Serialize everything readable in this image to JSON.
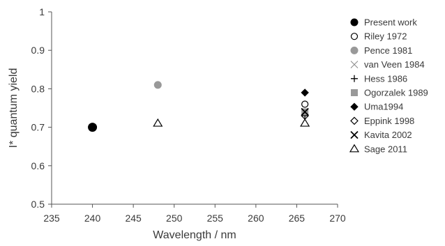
{
  "chart_data": {
    "type": "scatter",
    "title": "",
    "xlabel": "Wavelength / nm",
    "ylabel": "I* quantum yield",
    "xlim": [
      235,
      270
    ],
    "ylim": [
      0.5,
      1.0
    ],
    "xticks": [
      235,
      240,
      245,
      250,
      255,
      260,
      265,
      270
    ],
    "yticks": [
      0.5,
      0.6,
      0.7,
      0.8,
      0.9,
      1.0
    ],
    "xtick_labels": [
      "235",
      "240",
      "245",
      "250",
      "255",
      "260",
      "265",
      "270"
    ],
    "ytick_labels": [
      "0.5",
      "0.6",
      "0.7",
      "0.8",
      "0.9",
      "1"
    ],
    "grid": false,
    "legend_position": "right",
    "series": [
      {
        "name": "Present work",
        "marker": "filled-circle",
        "color": "#000000",
        "points": [
          {
            "x": 240,
            "y": 0.7
          }
        ]
      },
      {
        "name": "Riley 1972",
        "marker": "open-circle",
        "color": "#000000",
        "points": [
          {
            "x": 266,
            "y": 0.76
          }
        ]
      },
      {
        "name": "Pence 1981",
        "marker": "grey-circle",
        "color": "#999999",
        "points": [
          {
            "x": 248,
            "y": 0.81
          }
        ]
      },
      {
        "name": "van Veen 1984",
        "marker": "x-thin",
        "color": "#888888",
        "points": [
          {
            "x": 266,
            "y": 0.74
          }
        ]
      },
      {
        "name": "Hess 1986",
        "marker": "plus",
        "color": "#000000",
        "points": [
          {
            "x": 266,
            "y": 0.73
          }
        ]
      },
      {
        "name": "Ogorzalek 1989",
        "marker": "grey-square",
        "color": "#999999",
        "points": [
          {
            "x": 266,
            "y": 0.74
          }
        ]
      },
      {
        "name": "Uma1994",
        "marker": "filled-diamond",
        "color": "#000000",
        "points": [
          {
            "x": 266,
            "y": 0.79
          }
        ]
      },
      {
        "name": "Eppink 1998",
        "marker": "open-diamond",
        "color": "#000000",
        "points": [
          {
            "x": 266,
            "y": 0.73
          }
        ]
      },
      {
        "name": "Kavita 2002",
        "marker": "x-bold",
        "color": "#000000",
        "points": [
          {
            "x": 266,
            "y": 0.74
          }
        ]
      },
      {
        "name": "Sage 2011",
        "marker": "open-triangle",
        "color": "#000000",
        "points": [
          {
            "x": 248,
            "y": 0.71
          },
          {
            "x": 266,
            "y": 0.71
          }
        ]
      }
    ]
  }
}
